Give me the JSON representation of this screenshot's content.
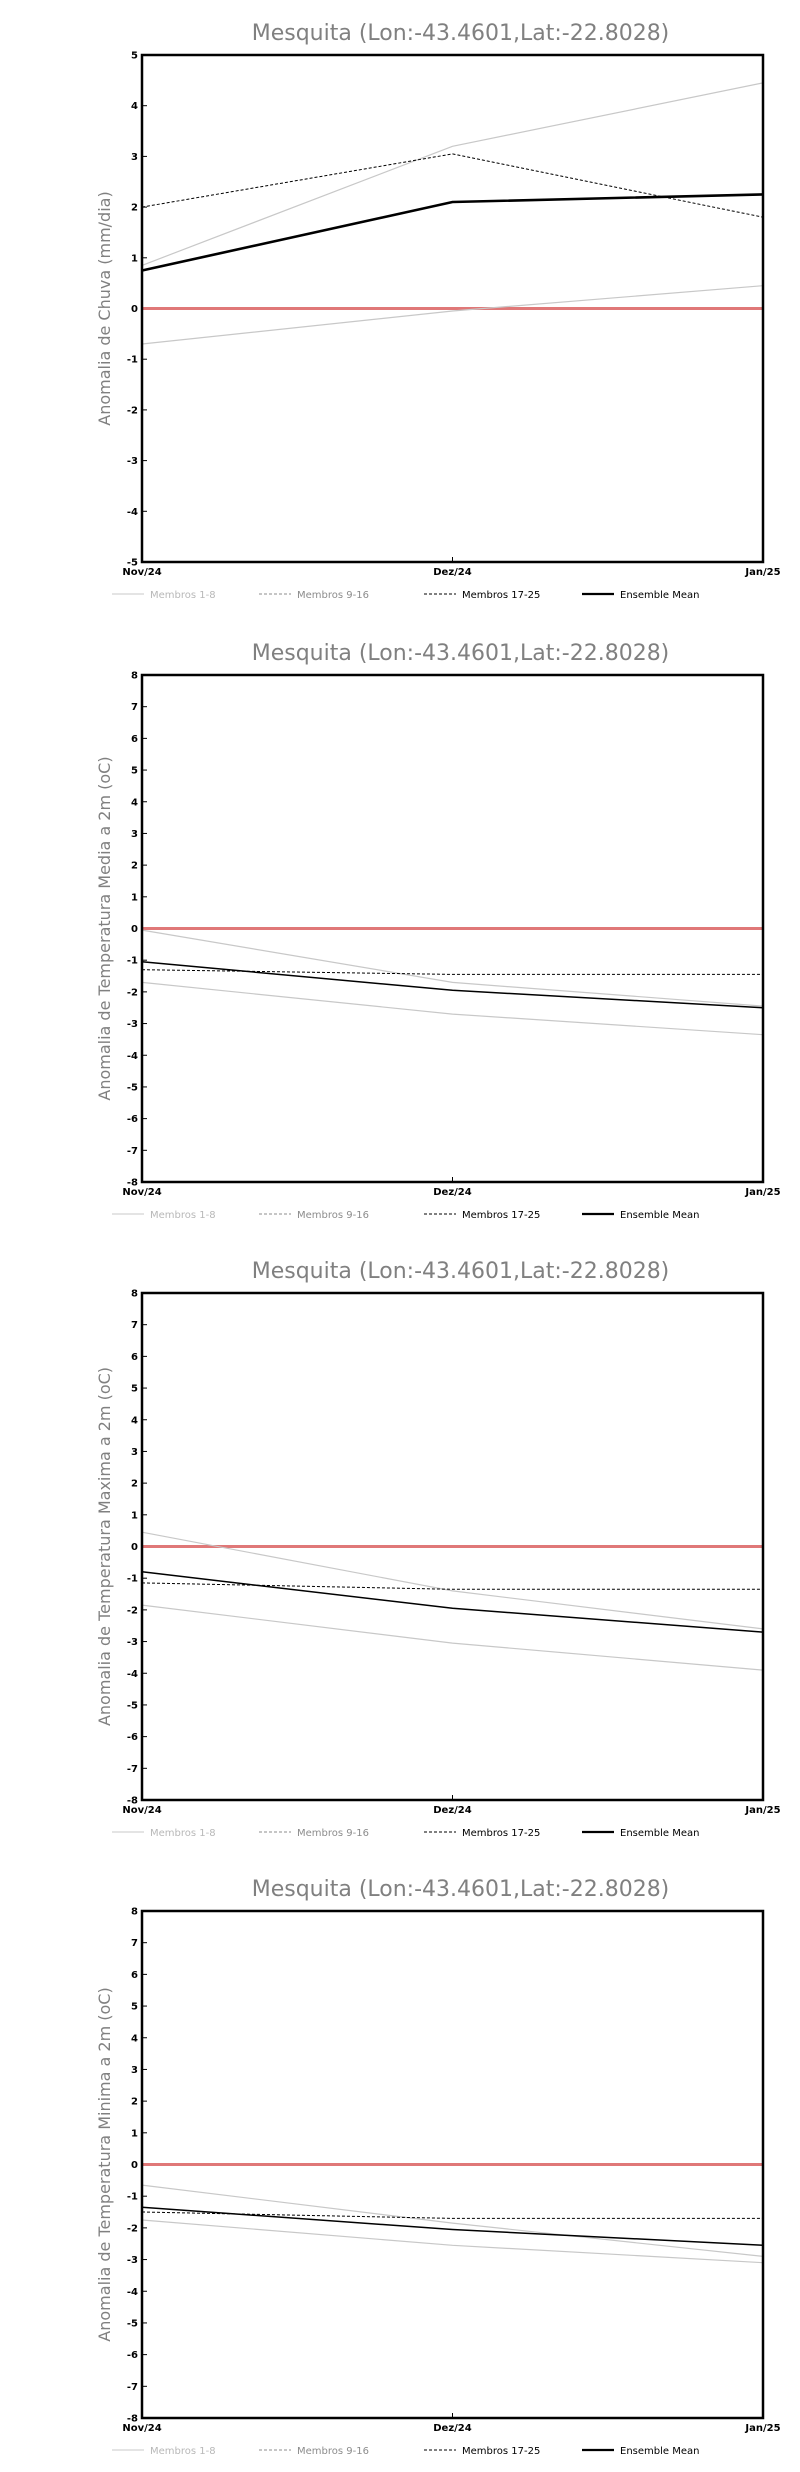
{
  "chart_data": [
    {
      "type": "line",
      "title": "Mesquita (Lon:-43.4601,Lat:-22.8028)",
      "ylabel": "Anomalia de Chuva (mm/dia)",
      "categories": [
        "Nov/24",
        "Dez/24",
        "Jan/25"
      ],
      "ylim": [
        -5,
        5
      ],
      "reference_line": 0,
      "series": [
        {
          "name": "Membros 1-8",
          "style": "light-solid",
          "values": [
            0.85,
            3.2,
            4.45
          ]
        },
        {
          "name": "Membros 1-8",
          "style": "light-solid",
          "values": [
            -0.7,
            -0.05,
            0.45
          ]
        },
        {
          "name": "Membros 17-25",
          "style": "dashed",
          "values": [
            2.0,
            3.05,
            1.8
          ]
        },
        {
          "name": "Ensemble Mean",
          "style": "thick",
          "values": [
            0.75,
            2.1,
            2.25
          ]
        }
      ]
    },
    {
      "type": "line",
      "title": "Mesquita (Lon:-43.4601,Lat:-22.8028)",
      "ylabel": "Anomalia de Temperatura Media a 2m (oC)",
      "categories": [
        "Nov/24",
        "Dez/24",
        "Jan/25"
      ],
      "ylim": [
        -8,
        8
      ],
      "reference_line": 0,
      "series": [
        {
          "name": "Membros 1-8",
          "style": "light-solid",
          "values": [
            -0.05,
            -1.7,
            -2.45
          ]
        },
        {
          "name": "Membros 1-8",
          "style": "light-solid",
          "values": [
            -1.7,
            -2.7,
            -3.35
          ]
        },
        {
          "name": "Membros 17-25",
          "style": "dashed",
          "values": [
            -1.3,
            -1.45,
            -1.45
          ]
        },
        {
          "name": "Ensemble Mean",
          "style": "solid",
          "values": [
            -1.05,
            -1.95,
            -2.5
          ]
        }
      ]
    },
    {
      "type": "line",
      "title": "Mesquita (Lon:-43.4601,Lat:-22.8028)",
      "ylabel": "Anomalia de Temperatura Maxima a 2m (oC)",
      "categories": [
        "Nov/24",
        "Dez/24",
        "Jan/25"
      ],
      "ylim": [
        -8,
        8
      ],
      "reference_line": 0,
      "series": [
        {
          "name": "Membros 1-8",
          "style": "light-solid",
          "values": [
            0.45,
            -1.4,
            -2.6
          ]
        },
        {
          "name": "Membros 1-8",
          "style": "light-solid",
          "values": [
            -1.85,
            -3.05,
            -3.9
          ]
        },
        {
          "name": "Membros 17-25",
          "style": "dashed",
          "values": [
            -1.15,
            -1.35,
            -1.35
          ]
        },
        {
          "name": "Ensemble Mean",
          "style": "solid",
          "values": [
            -0.8,
            -1.95,
            -2.7
          ]
        }
      ]
    },
    {
      "type": "line",
      "title": "Mesquita (Lon:-43.4601,Lat:-22.8028)",
      "ylabel": "Anomalia de Temperatura Minima a 2m (oC)",
      "categories": [
        "Nov/24",
        "Dez/24",
        "Jan/25"
      ],
      "ylim": [
        -8,
        8
      ],
      "reference_line": 0,
      "series": [
        {
          "name": "Membros 1-8",
          "style": "light-solid",
          "values": [
            -0.65,
            -1.85,
            -2.9
          ]
        },
        {
          "name": "Membros 1-8",
          "style": "light-solid",
          "values": [
            -1.75,
            -2.55,
            -3.1
          ]
        },
        {
          "name": "Membros 17-25",
          "style": "dashed",
          "values": [
            -1.5,
            -1.7,
            -1.7
          ]
        },
        {
          "name": "Ensemble Mean",
          "style": "solid",
          "values": [
            -1.35,
            -2.05,
            -2.55
          ]
        }
      ]
    }
  ],
  "legend": [
    {
      "label": "Membros 1-8",
      "style": "light-solid",
      "color": "#c8c8c8"
    },
    {
      "label": "Membros 9-16",
      "style": "light-dashed",
      "color": "#8c8c8c"
    },
    {
      "label": "Membros 17-25",
      "style": "dashed",
      "color": "#000000"
    },
    {
      "label": "Ensemble Mean",
      "style": "thick",
      "color": "#000000"
    }
  ],
  "colors": {
    "reference_line": "#e07878",
    "light_member": "#c8c8c8",
    "mid_member": "#8c8c8c",
    "dark": "#000000",
    "title": "#808080"
  }
}
